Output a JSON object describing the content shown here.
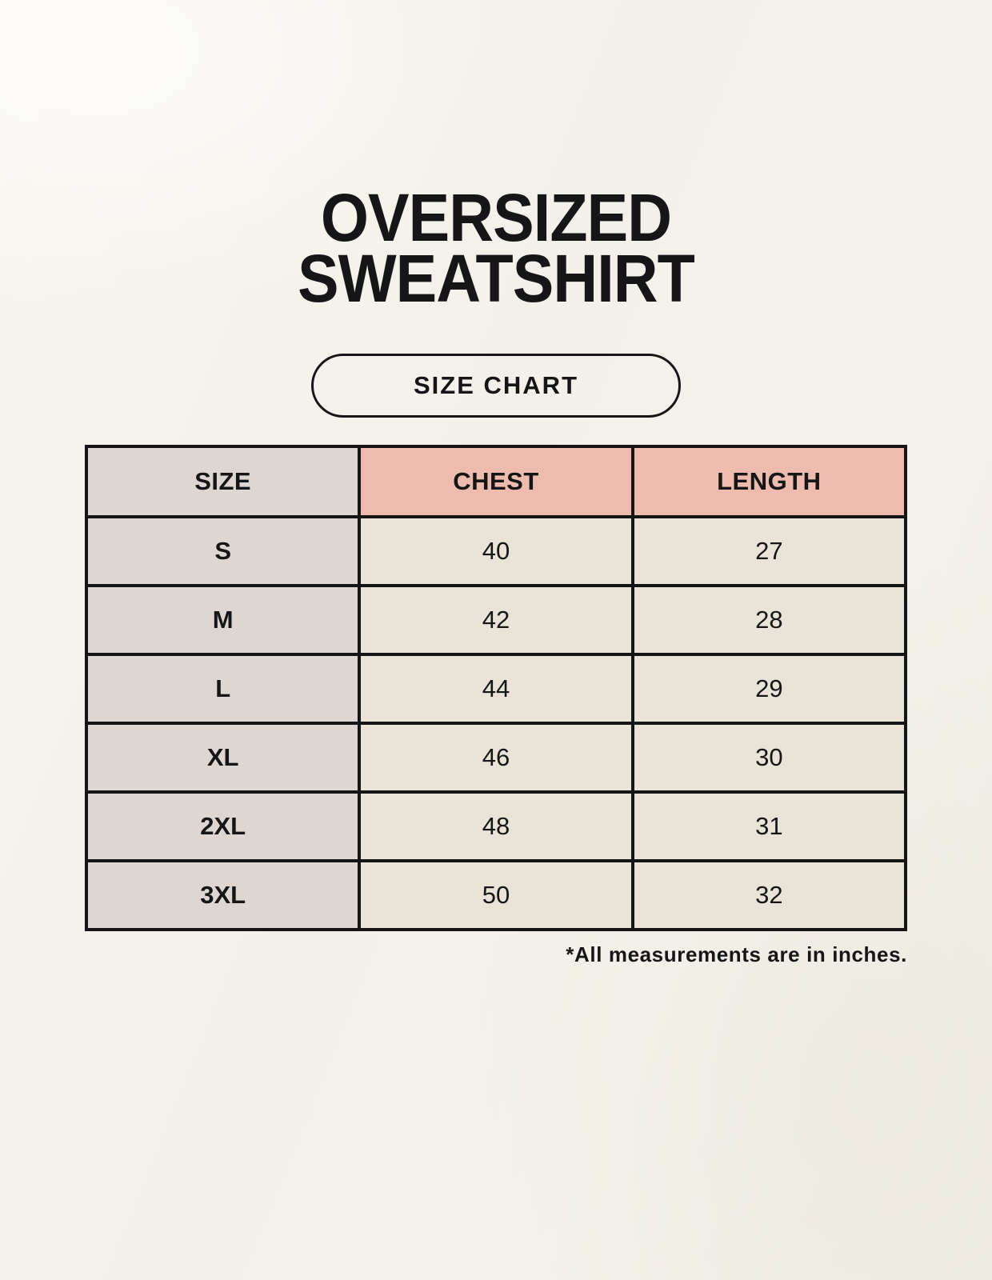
{
  "page": {
    "title_line1": "OVERSIZED",
    "title_line2": "SWEATSHIRT",
    "badge_label": "SIZE CHART",
    "footnote": "*All measurements are in inches."
  },
  "chart_data": {
    "type": "table",
    "title": "OVERSIZED SWEATSHIRT",
    "subtitle": "SIZE CHART",
    "columns": [
      "SIZE",
      "CHEST",
      "LENGTH"
    ],
    "rows": [
      [
        "S",
        40,
        27
      ],
      [
        "M",
        42,
        28
      ],
      [
        "L",
        44,
        29
      ],
      [
        "XL",
        46,
        30
      ],
      [
        "2XL",
        48,
        31
      ],
      [
        "3XL",
        50,
        32
      ]
    ],
    "units": "inches",
    "footnote": "*All measurements are in inches."
  },
  "colors": {
    "page_background": "#f3f0e9",
    "size_column_bg": "#ded7d1",
    "measure_header_bg": "#eebcae",
    "value_cell_bg": "#e9e4d7",
    "border": "#151515",
    "text": "#161616"
  }
}
